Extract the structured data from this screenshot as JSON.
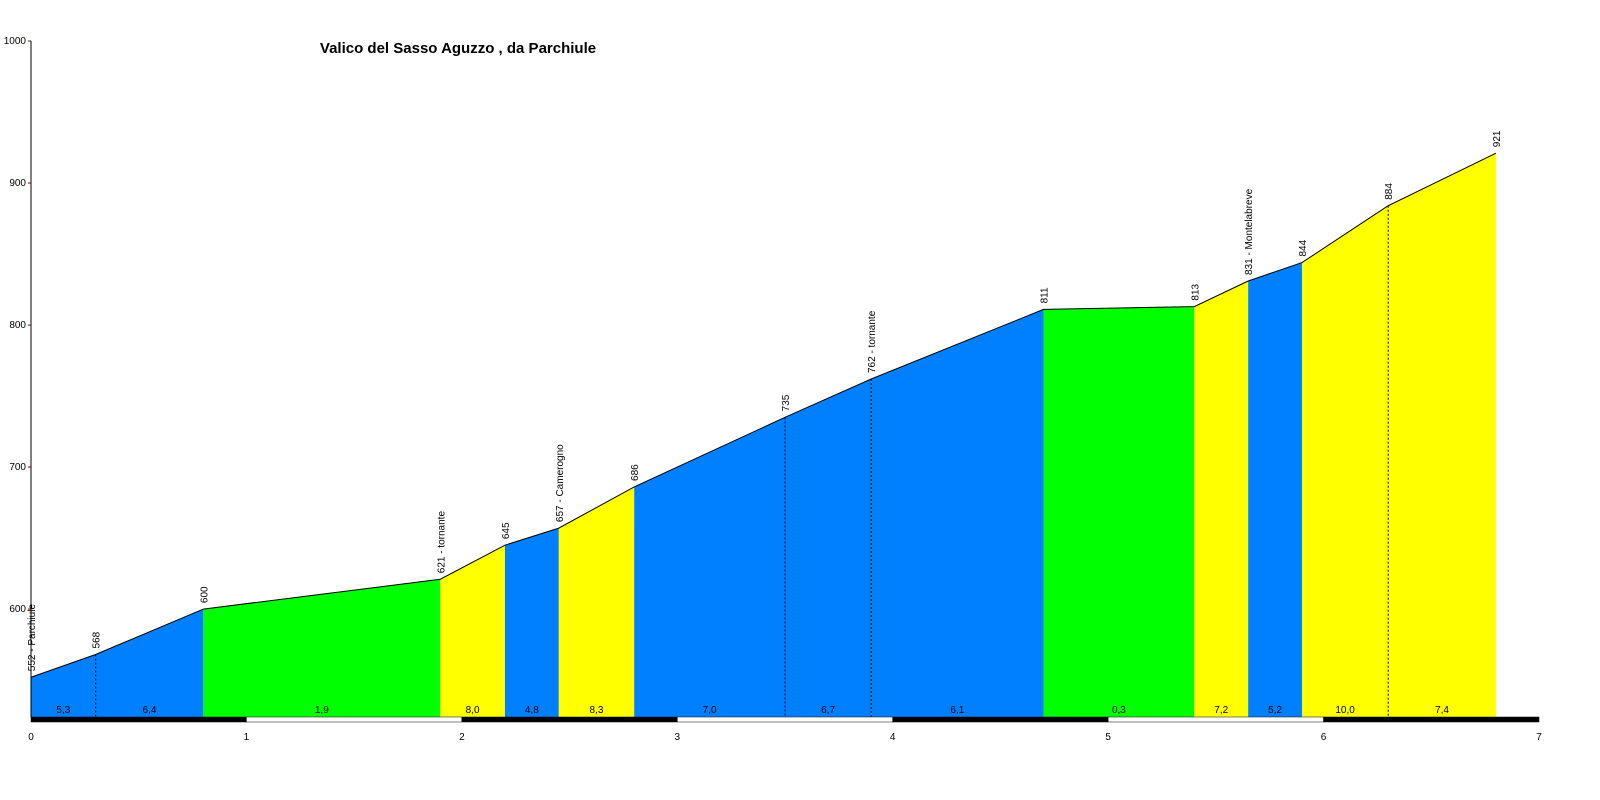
{
  "chart_data": {
    "type": "elevation-profile",
    "title": "Valico del Sasso Aguzzo , da Parchiule",
    "xlim": [
      0,
      7
    ],
    "xticks": [
      0,
      1,
      2,
      3,
      4,
      5,
      6,
      7
    ],
    "ylim": [
      524,
      1000
    ],
    "yticks": [
      600,
      700,
      800,
      900,
      1000
    ],
    "points": {
      "x": [
        0,
        0.3,
        0.8,
        1.9,
        2.2,
        2.45,
        2.8,
        3.5,
        3.9,
        4.7,
        5.4,
        5.65,
        5.9,
        6.3,
        6.8
      ],
      "elevation": [
        552,
        568,
        600,
        621,
        645,
        657,
        686,
        735,
        762,
        811,
        813,
        831,
        844,
        884,
        921
      ],
      "value_labels": [
        "552 - Parchiule",
        "568",
        "600",
        "621 - tornante",
        "645",
        "657 - Camerogno",
        "686",
        "735",
        "762 - tornante",
        "811",
        "813",
        "831 - Montelabreve",
        "844",
        "884",
        "921"
      ]
    },
    "gradients": {
      "values": [
        5.3,
        6.4,
        1.9,
        8.0,
        4.8,
        8.3,
        7.0,
        6.7,
        6.1,
        0.3,
        7.2,
        5.2,
        10.0,
        7.4
      ],
      "value_labels": [
        "5,3",
        "6,4",
        "1,9",
        "8,0",
        "4,8",
        "8,3",
        "7,0",
        "6,7",
        "6,1",
        "0,3",
        "7,2",
        "5,2",
        "10,0",
        "7,4"
      ],
      "colors": [
        "#0080ff",
        "#0080ff",
        "#00ff00",
        "#ffff00",
        "#0080ff",
        "#ffff00",
        "#0080ff",
        "#0080ff",
        "#0080ff",
        "#00ff00",
        "#ffff00",
        "#0080ff",
        "#ffff00",
        "#ffff00"
      ]
    }
  }
}
